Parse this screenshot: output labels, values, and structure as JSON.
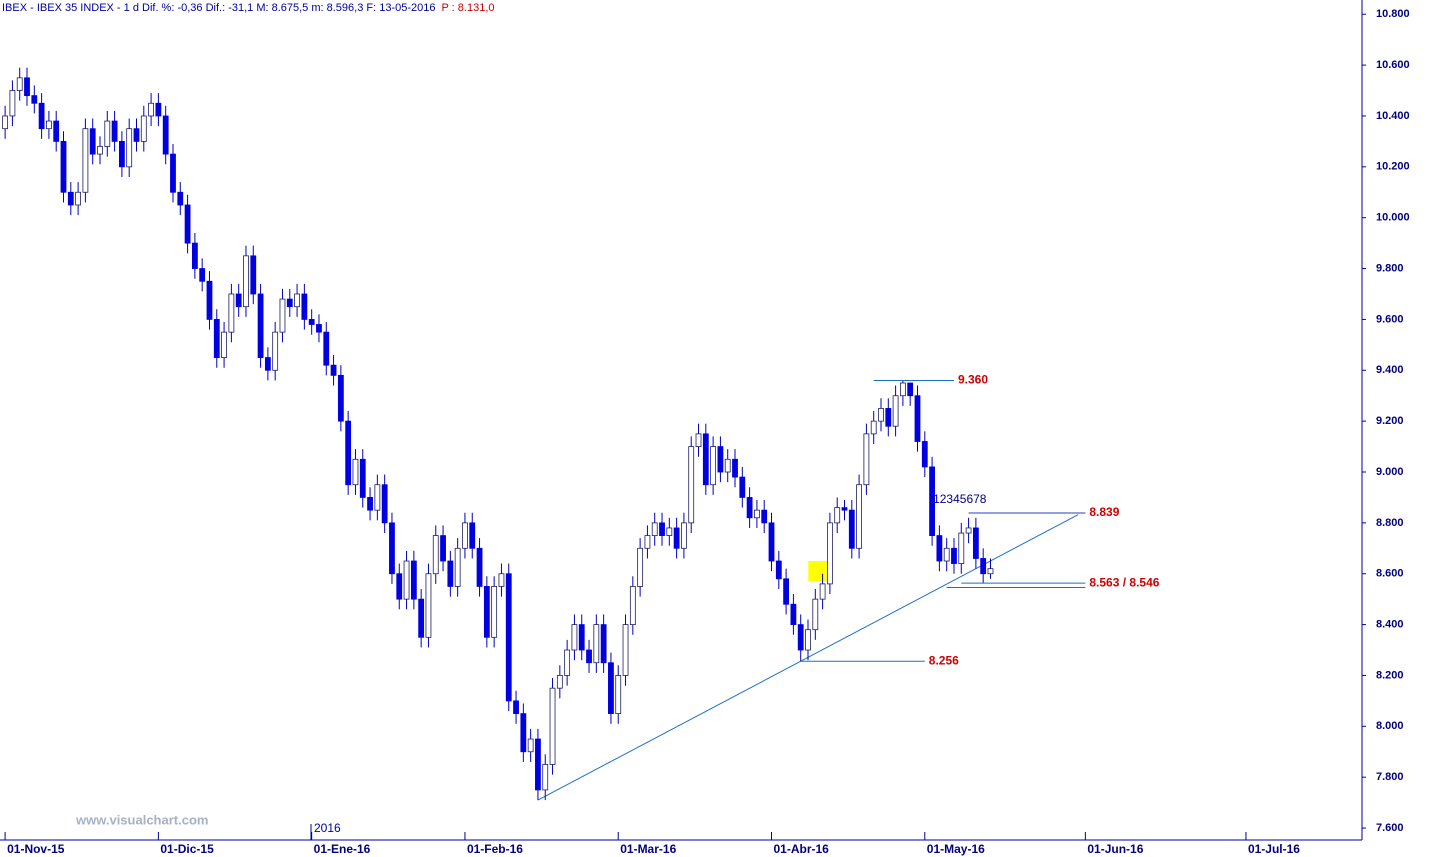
{
  "chart_data": {
    "type": "candlestick",
    "title": "IBEX - IBEX 35 INDEX - 1 d Dif. %: -0,36 Dif.: -31,1 M: 8.675,5 m: 8.596,3 F: 13-05-2016",
    "title_price": "P : 8.131,0",
    "watermark": "www.visualchart.com",
    "year_label": "2016",
    "wave_label": "12345678",
    "color_down": "#0000e0",
    "color_up": "#ffffff",
    "wick_color": "#0000c0",
    "line_color": "#1e6fc8",
    "label_color": "#d00000",
    "open": [
      10350,
      10400,
      10500,
      10550,
      10480,
      10450,
      10350,
      10380,
      10300,
      10100,
      10050,
      10100,
      10350,
      10250,
      10280,
      10380,
      10300,
      10200,
      10350,
      10300,
      10400,
      10450,
      10400,
      10250,
      10100,
      10050,
      9900,
      9800,
      9750,
      9600,
      9450,
      9550,
      9700,
      9650,
      9850,
      9700,
      9450,
      9400,
      9550,
      9680,
      9650,
      9700,
      9600,
      9580,
      9550,
      9420,
      9380,
      9200,
      8950,
      9050,
      8900,
      8850,
      8950,
      8800,
      8600,
      8500,
      8650,
      8500,
      8350,
      8600,
      8750,
      8650,
      8550,
      8700,
      8800,
      8700,
      8550,
      8350,
      8550,
      8600,
      8100,
      8050,
      7900,
      7950,
      7750,
      7850,
      8150,
      8200,
      8300,
      8400,
      8300,
      8250,
      8400,
      8250,
      8050,
      8200,
      8400,
      8550,
      8700,
      8750,
      8800,
      8750,
      8780,
      8700,
      8800,
      9100,
      9150,
      8950,
      9100,
      9000,
      9050,
      8980,
      8900,
      8820,
      8850,
      8800,
      8650,
      8580,
      8480,
      8400,
      8300,
      8380,
      8500,
      8560,
      8800,
      8860,
      8850,
      8700,
      8950,
      9150,
      9200,
      9250,
      9180,
      9300,
      9350,
      9300,
      9120,
      9020,
      8750,
      8650,
      8700,
      8640,
      8760,
      8780,
      8660,
      8600
    ],
    "high": [
      10440,
      10540,
      10590,
      10590,
      10520,
      10490,
      10420,
      10420,
      10340,
      10140,
      10140,
      10390,
      10390,
      10320,
      10420,
      10420,
      10340,
      10390,
      10390,
      10440,
      10490,
      10490,
      10440,
      10290,
      10140,
      10090,
      9940,
      9840,
      9790,
      9640,
      9590,
      9740,
      9740,
      9890,
      9890,
      9740,
      9490,
      9590,
      9720,
      9720,
      9740,
      9740,
      9640,
      9620,
      9590,
      9460,
      9420,
      9240,
      9090,
      9090,
      8940,
      8990,
      8990,
      8840,
      8640,
      8690,
      8690,
      8540,
      8640,
      8790,
      8790,
      8690,
      8740,
      8840,
      8840,
      8740,
      8590,
      8590,
      8640,
      8640,
      8140,
      8090,
      7990,
      7990,
      7890,
      8190,
      8240,
      8340,
      8440,
      8440,
      8340,
      8440,
      8440,
      8290,
      8240,
      8440,
      8590,
      8740,
      8790,
      8840,
      8840,
      8820,
      8820,
      8840,
      9140,
      9190,
      9190,
      9140,
      9140,
      9090,
      9090,
      9020,
      8940,
      8890,
      8890,
      8840,
      8690,
      8620,
      8520,
      8440,
      8420,
      8540,
      8600,
      8840,
      8900,
      8890,
      8890,
      8990,
      9190,
      9240,
      9290,
      9290,
      9340,
      9360,
      9350,
      9340,
      9160,
      9060,
      8790,
      8740,
      8740,
      8800,
      8820,
      8820,
      8700,
      8660
    ],
    "low": [
      10310,
      10360,
      10460,
      10440,
      10410,
      10310,
      10310,
      10260,
      10060,
      10010,
      10010,
      10060,
      10210,
      10210,
      10240,
      10260,
      10160,
      10160,
      10260,
      10260,
      10360,
      10360,
      10210,
      10060,
      10010,
      9860,
      9760,
      9710,
      9560,
      9410,
      9410,
      9510,
      9610,
      9610,
      9660,
      9410,
      9360,
      9360,
      9510,
      9610,
      9610,
      9560,
      9540,
      9510,
      9380,
      9340,
      9160,
      8910,
      8910,
      8860,
      8810,
      8810,
      8760,
      8560,
      8460,
      8460,
      8460,
      8310,
      8310,
      8560,
      8610,
      8510,
      8510,
      8660,
      8660,
      8510,
      8310,
      8310,
      8510,
      8060,
      8010,
      7860,
      7860,
      7710,
      7710,
      7810,
      8110,
      8160,
      8260,
      8260,
      8210,
      8210,
      8210,
      8010,
      8010,
      8160,
      8360,
      8510,
      8660,
      8710,
      8710,
      8710,
      8660,
      8660,
      8760,
      9060,
      8910,
      8910,
      8960,
      8960,
      8940,
      8860,
      8780,
      8780,
      8760,
      8610,
      8540,
      8440,
      8360,
      8256,
      8260,
      8340,
      8460,
      8520,
      8760,
      8810,
      8660,
      8660,
      8910,
      9110,
      9160,
      9140,
      9140,
      9260,
      9260,
      9080,
      8980,
      8710,
      8610,
      8610,
      8600,
      8600,
      8720,
      8620,
      8563,
      8580
    ],
    "close": [
      10400,
      10500,
      10550,
      10480,
      10450,
      10350,
      10380,
      10300,
      10100,
      10050,
      10100,
      10350,
      10250,
      10280,
      10380,
      10300,
      10200,
      10350,
      10300,
      10400,
      10450,
      10400,
      10250,
      10100,
      10050,
      9900,
      9800,
      9750,
      9600,
      9450,
      9550,
      9700,
      9650,
      9850,
      9700,
      9450,
      9400,
      9550,
      9680,
      9650,
      9700,
      9600,
      9580,
      9550,
      9420,
      9380,
      9200,
      8950,
      9050,
      8900,
      8850,
      8950,
      8800,
      8600,
      8500,
      8650,
      8500,
      8350,
      8600,
      8750,
      8650,
      8550,
      8700,
      8800,
      8700,
      8550,
      8350,
      8550,
      8600,
      8100,
      8050,
      7900,
      7950,
      7750,
      7850,
      8150,
      8200,
      8300,
      8400,
      8300,
      8250,
      8400,
      8250,
      8050,
      8200,
      8400,
      8550,
      8700,
      8750,
      8800,
      8750,
      8780,
      8700,
      8800,
      9100,
      9150,
      8950,
      9100,
      9000,
      9050,
      8980,
      8900,
      8820,
      8850,
      8800,
      8650,
      8580,
      8480,
      8400,
      8300,
      8380,
      8500,
      8560,
      8800,
      8860,
      8850,
      8700,
      8950,
      9150,
      9200,
      9250,
      9180,
      9300,
      9350,
      9300,
      9120,
      9020,
      8750,
      8650,
      8700,
      8640,
      8760,
      8780,
      8660,
      8600,
      8620
    ],
    "levels": [
      {
        "value": 9360,
        "label": "9.360"
      },
      {
        "value": 8839,
        "label": "8.839"
      },
      {
        "values": [
          8563,
          8546
        ],
        "label": "8.563 / 8.546"
      },
      {
        "value": 8256,
        "label": "8.256"
      }
    ],
    "xlim": [
      -0.7,
      185.9
    ],
    "xticks": [
      {
        "value": 0,
        "label": "01-Nov-15"
      },
      {
        "value": 21,
        "label": "01-Dic-15"
      },
      {
        "value": 42,
        "label": "01-Ene-16"
      },
      {
        "value": 63,
        "label": "01-Feb-16"
      },
      {
        "value": 84,
        "label": "01-Mar-16"
      },
      {
        "value": 105,
        "label": "01-Abr-16"
      },
      {
        "value": 126,
        "label": "01-May-16"
      },
      {
        "value": 148,
        "label": "01-Jun-16"
      },
      {
        "value": 170,
        "label": "01-Jul-16"
      }
    ],
    "ylim": [
      7553,
      10856
    ],
    "yticks": [
      {
        "value": 7600,
        "label": "7.600"
      },
      {
        "value": 7800,
        "label": "7.800"
      },
      {
        "value": 8000,
        "label": "8.000"
      },
      {
        "value": 8200,
        "label": "8.200"
      },
      {
        "value": 8400,
        "label": "8.400"
      },
      {
        "value": 8600,
        "label": "8.600"
      },
      {
        "value": 8800,
        "label": "8.800"
      },
      {
        "value": 9000,
        "label": "9.000"
      },
      {
        "value": 9200,
        "label": "9.200"
      },
      {
        "value": 9400,
        "label": "9.400"
      },
      {
        "value": 9600,
        "label": "9.600"
      },
      {
        "value": 9800,
        "label": "9.800"
      },
      {
        "value": 10000,
        "label": "10.000"
      },
      {
        "value": 10200,
        "label": "10.200"
      },
      {
        "value": 10400,
        "label": "10.400"
      },
      {
        "value": 10600,
        "label": "10.600"
      },
      {
        "value": 10800,
        "label": "10.800"
      }
    ]
  }
}
